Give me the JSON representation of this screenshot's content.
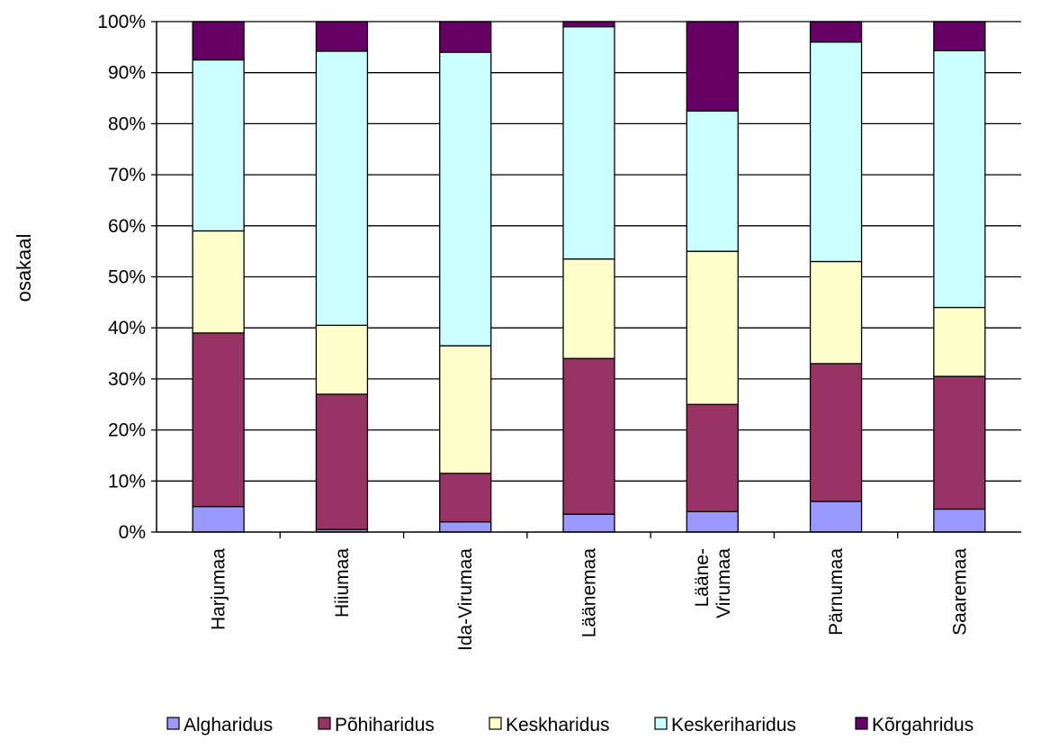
{
  "chart_data": {
    "type": "bar",
    "stacked": true,
    "normalized": true,
    "title": "",
    "xlabel": "",
    "ylabel": "osakaal",
    "ylim": [
      0,
      100
    ],
    "yticks": [
      "0%",
      "10%",
      "20%",
      "30%",
      "40%",
      "50%",
      "60%",
      "70%",
      "80%",
      "90%",
      "100%"
    ],
    "grid": true,
    "legend_position": "bottom",
    "categories": [
      {
        "lines": [
          "Harjumaa"
        ]
      },
      {
        "lines": [
          "Hiiumaa"
        ]
      },
      {
        "lines": [
          "Ida-Virumaa"
        ]
      },
      {
        "lines": [
          "Läänemaa"
        ]
      },
      {
        "lines": [
          "Lääne-",
          "Virumaa"
        ]
      },
      {
        "lines": [
          "Pärnumaa"
        ]
      },
      {
        "lines": [
          "Saaremaa"
        ]
      }
    ],
    "series": [
      {
        "name": "Algharidus",
        "color": "#9999ff",
        "values": [
          5,
          0.5,
          2,
          3.5,
          4,
          6,
          4.5
        ]
      },
      {
        "name": "Põhiharidus",
        "color": "#993366",
        "values": [
          34,
          26.5,
          9.5,
          30.5,
          21,
          27,
          26
        ]
      },
      {
        "name": "Keskharidus",
        "color": "#ffffcc",
        "values": [
          20,
          13.5,
          25,
          19.5,
          30,
          20,
          13.5
        ]
      },
      {
        "name": "Keskeriharidus",
        "color": "#ccffff",
        "values": [
          33.5,
          53.7,
          57.5,
          45.5,
          27.5,
          43,
          50.3
        ]
      },
      {
        "name": "Kõrgahridus",
        "color": "#660066",
        "values": [
          7.5,
          5.8,
          6,
          1,
          17.5,
          4,
          5.7
        ]
      }
    ]
  }
}
